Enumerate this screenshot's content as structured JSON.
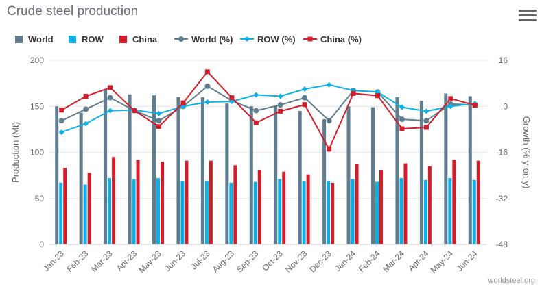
{
  "title": "Crude steel production",
  "credit": "worldsteel.org",
  "menu_icon": "hamburger-menu-icon",
  "colors": {
    "world": "#5f7d8e",
    "row": "#0bb1e6",
    "china": "#d21e2b",
    "world_pct": "#5f7d8e",
    "row_pct": "#0bb1e6",
    "china_pct": "#d21e2b"
  },
  "legend": [
    {
      "key": "world",
      "label": "World",
      "kind": "bar"
    },
    {
      "key": "row",
      "label": "ROW",
      "kind": "bar"
    },
    {
      "key": "china",
      "label": "China",
      "kind": "bar"
    },
    {
      "key": "world_pct",
      "label": "World (%)",
      "kind": "line-circle"
    },
    {
      "key": "row_pct",
      "label": "ROW (%)",
      "kind": "line-diamond"
    },
    {
      "key": "china_pct",
      "label": "China (%)",
      "kind": "line-square"
    }
  ],
  "chart_data": {
    "type": "bar",
    "categories": [
      "Jan-23",
      "Feb-23",
      "Mar-23",
      "Apr-23",
      "May-23",
      "Jun-23",
      "Jul-23",
      "Aug-23",
      "Sep-23",
      "Oct-23",
      "Nov-23",
      "Dec-23",
      "Jan-24",
      "Feb-24",
      "Mar-24",
      "Apr-24",
      "May-24",
      "Jun-24"
    ],
    "ylabel": "Production (Mt)",
    "y2label": "Growth (% y-on-y)",
    "ylim": [
      0,
      200
    ],
    "yticks": [
      0,
      50,
      100,
      150,
      200
    ],
    "y2lim": [
      -48,
      16
    ],
    "y2ticks": [
      -48,
      -32,
      -16,
      0,
      16
    ],
    "grid": true,
    "legend_position": "top",
    "bar_series": [
      {
        "key": "world",
        "name": "World",
        "values": [
          150,
          143,
          168,
          163,
          162,
          160,
          160,
          153,
          150,
          150,
          145,
          136,
          150,
          149,
          160,
          156,
          164,
          161
        ]
      },
      {
        "key": "row",
        "name": "ROW",
        "values": [
          67,
          65,
          72,
          71,
          72,
          69,
          69,
          67,
          68,
          71,
          69,
          69,
          71,
          68,
          72,
          70,
          72,
          70
        ]
      },
      {
        "key": "china",
        "name": "China",
        "values": [
          83,
          78,
          95,
          92,
          90,
          91,
          91,
          86,
          81,
          79,
          76,
          67,
          87,
          81,
          88,
          85,
          92,
          91
        ]
      }
    ],
    "line_series": [
      {
        "key": "world_pct",
        "name": "World (%)",
        "marker": "circle",
        "values": [
          -5,
          -1,
          3,
          -1.5,
          -5,
          0,
          7,
          2,
          -1.5,
          0.5,
          3,
          -5,
          5.5,
          5,
          -4.5,
          -5,
          0.8,
          0.5
        ]
      },
      {
        "key": "row_pct",
        "name": "ROW (%)",
        "marker": "diamond",
        "values": [
          -9,
          -6,
          -1.5,
          -1.3,
          -2.5,
          0,
          1.5,
          1.7,
          4,
          3.5,
          6,
          7.5,
          5.5,
          5,
          -0.3,
          -1.7,
          0,
          1
        ]
      },
      {
        "key": "china_pct",
        "name": "China (%)",
        "marker": "square",
        "values": [
          -1.3,
          3.5,
          6.5,
          -1.5,
          -7,
          1.2,
          12,
          3,
          -5.7,
          -1.7,
          0.6,
          -14.9,
          4.5,
          3.7,
          -7.8,
          -7.3,
          2.7,
          0.4
        ]
      }
    ]
  }
}
